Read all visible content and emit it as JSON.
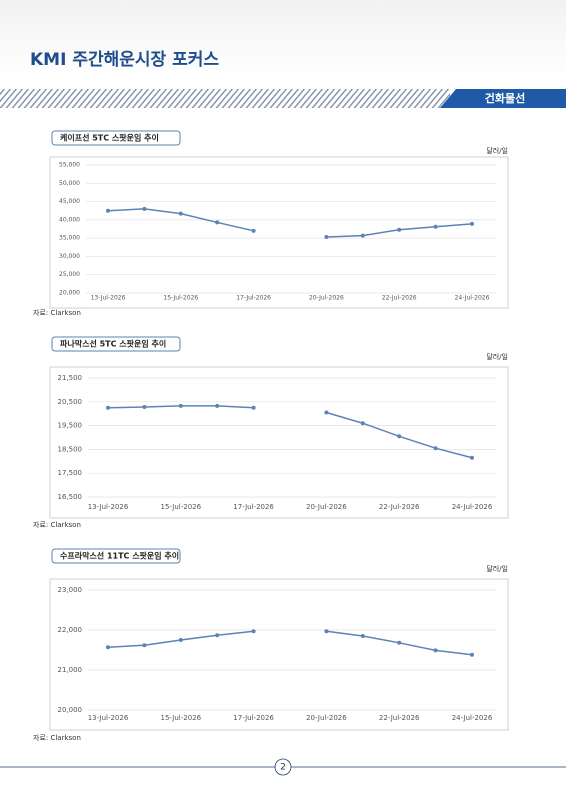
{
  "header": {
    "title": "KMI 주간해운시장 포커스",
    "section": "건화물선"
  },
  "chart_data": [
    {
      "type": "line",
      "title": "케이프선 5TC 스팟운임 추이",
      "y_unit": "달러/일",
      "source": "자료: Clarkson",
      "categories": [
        "13-Jul-2026",
        null,
        "15-Jul-2026",
        null,
        "17-Jul-2026",
        null,
        "20-Jul-2026",
        null,
        "22-Jul-2026",
        null,
        "24-Jul-2026"
      ],
      "values": [
        42500,
        43000,
        41700,
        39300,
        37000,
        null,
        35300,
        35700,
        37300,
        38100,
        38900
      ],
      "color": "#5b83b5",
      "grid": true,
      "ylim": [
        20000,
        55000
      ],
      "yticks": [
        {
          "value": 20000,
          "label": "20,000"
        },
        {
          "value": 25000,
          "label": "25,000"
        },
        {
          "value": 30000,
          "label": "30,000"
        },
        {
          "value": 35000,
          "label": "35,000"
        },
        {
          "value": 40000,
          "label": "40,000"
        },
        {
          "value": 45000,
          "label": "45,000"
        },
        {
          "value": 50000,
          "label": "50,000"
        },
        {
          "value": 55000,
          "label": "55,000"
        }
      ]
    },
    {
      "type": "line",
      "title": "파나막스선 5TC 스팟운임 추이",
      "y_unit": "달러/일",
      "source": "자료: Clarkson",
      "categories": [
        "13-Jul-2026",
        null,
        "15-Jul-2026",
        null,
        "17-Jul-2026",
        null,
        "20-Jul-2026",
        null,
        "22-Jul-2026",
        null,
        "24-Jul-2026"
      ],
      "values": [
        20250,
        20280,
        20330,
        20330,
        20250,
        null,
        20050,
        19600,
        19050,
        18550,
        18150
      ],
      "color": "#5b83b5",
      "grid": true,
      "ylim": [
        16500,
        21500
      ],
      "yticks": [
        {
          "value": 16500,
          "label": "16,500"
        },
        {
          "value": 17500,
          "label": "17,500"
        },
        {
          "value": 18500,
          "label": "18,500"
        },
        {
          "value": 19500,
          "label": "19,500"
        },
        {
          "value": 20500,
          "label": "20,500"
        },
        {
          "value": 21500,
          "label": "21,500"
        }
      ]
    },
    {
      "type": "line",
      "title": "수프라막스선 11TC 스팟운임 추이",
      "y_unit": "달러/일",
      "source": "자료: Clarkson",
      "categories": [
        "13-Jul-2026",
        null,
        "15-Jul-2026",
        null,
        "17-Jul-2026",
        null,
        "20-Jul-2026",
        null,
        "22-Jul-2026",
        null,
        "24-Jul-2026"
      ],
      "values": [
        21570,
        21620,
        21750,
        21870,
        21970,
        null,
        21970,
        21850,
        21680,
        21490,
        21380
      ],
      "color": "#5b83b5",
      "grid": true,
      "ylim": [
        20000,
        23000
      ],
      "yticks": [
        {
          "value": 20000,
          "label": "20,000"
        },
        {
          "value": 21000,
          "label": "21,000"
        },
        {
          "value": 22000,
          "label": "22,000"
        },
        {
          "value": 23000,
          "label": "23,000"
        }
      ]
    }
  ],
  "page_number": "2"
}
